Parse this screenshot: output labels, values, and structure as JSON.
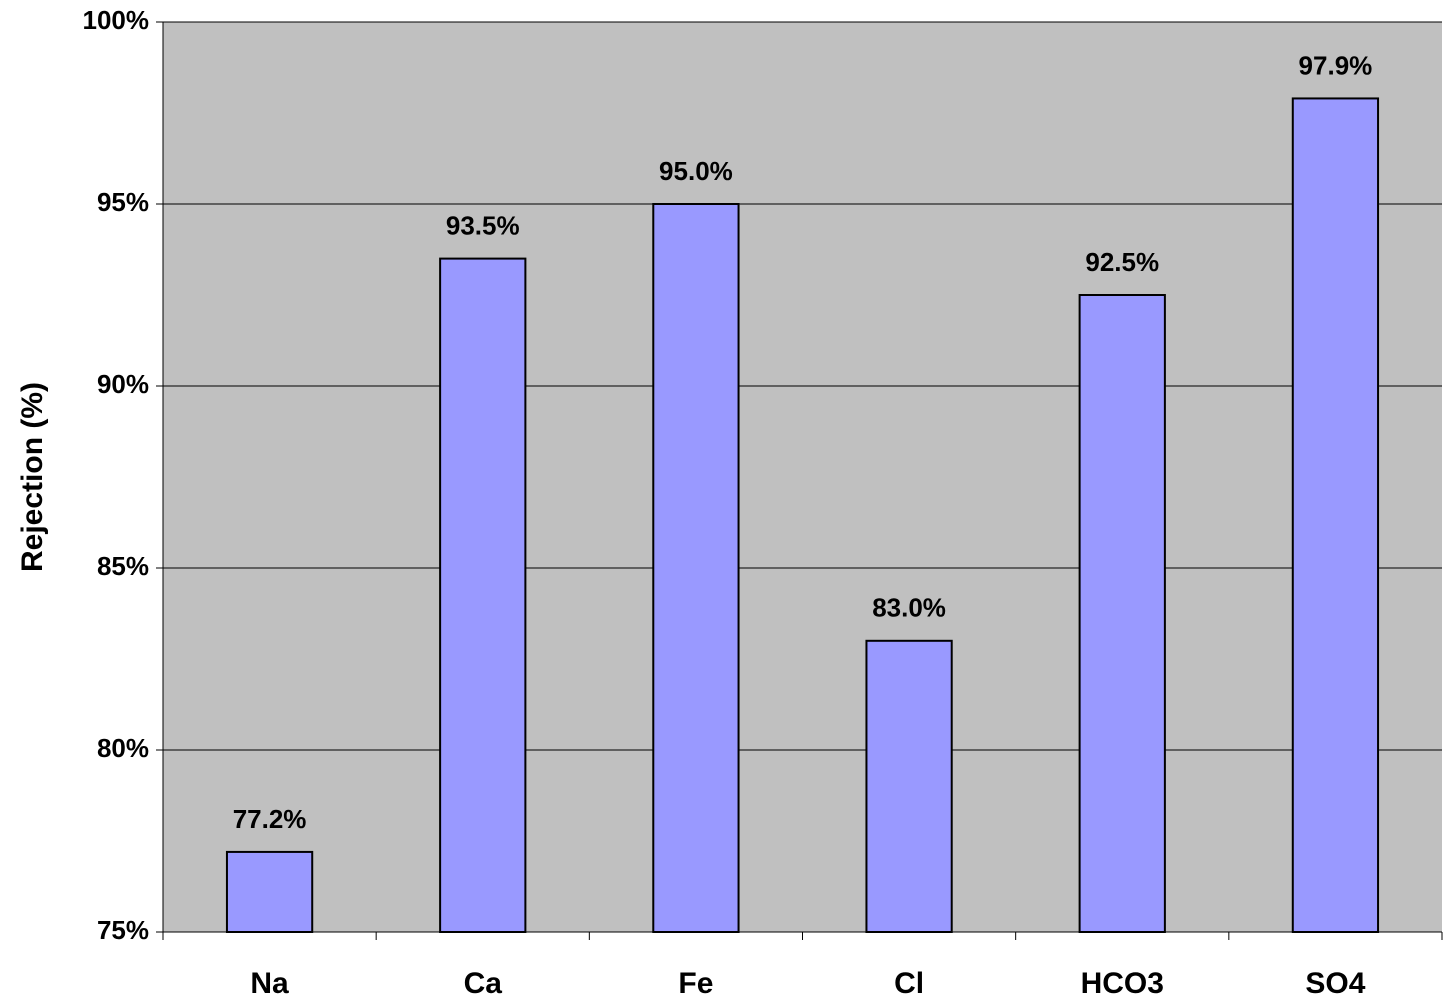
{
  "chart_data": {
    "type": "bar",
    "y_label": "Rejection (%)",
    "categories": [
      "Na",
      "Ca",
      "Fe",
      "Cl",
      "HCO3",
      "SO4"
    ],
    "values": [
      77.2,
      93.5,
      95.0,
      83.0,
      92.5,
      97.9
    ],
    "value_labels": [
      "77.2%",
      "93.5%",
      "95.0%",
      "83.0%",
      "92.5%",
      "97.9%"
    ],
    "color": "#9999ff",
    "ylim": [
      75,
      100
    ],
    "yticks": [
      {
        "value": 75,
        "label": "75%"
      },
      {
        "value": 80,
        "label": "80%"
      },
      {
        "value": 85,
        "label": "85%"
      },
      {
        "value": 90,
        "label": "90%"
      },
      {
        "value": 95,
        "label": "95%"
      },
      {
        "value": 100,
        "label": "100%"
      }
    ],
    "grid": true
  }
}
